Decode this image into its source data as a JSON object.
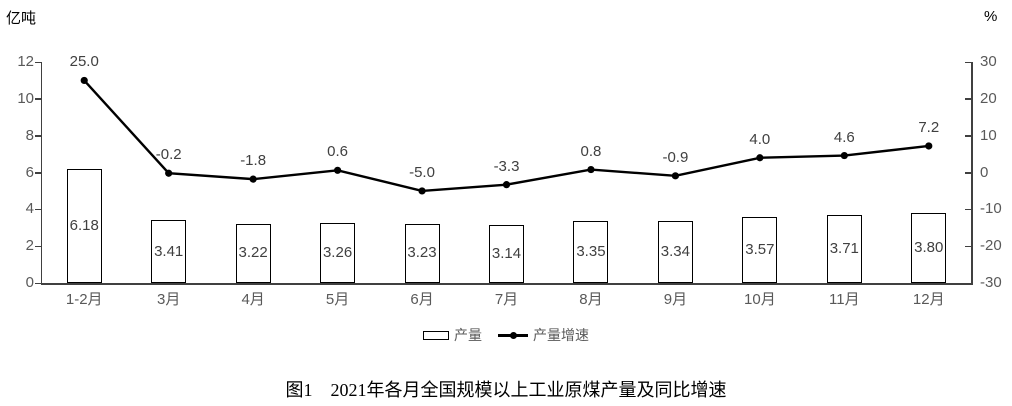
{
  "chart_data": {
    "type": "combo-bar-line",
    "caption": "图1　2021年各月全国规模以上工业原煤产量及同比增速",
    "categories": [
      "1-2月",
      "3月",
      "4月",
      "5月",
      "6月",
      "7月",
      "8月",
      "9月",
      "10月",
      "11月",
      "12月"
    ],
    "series": [
      {
        "name": "产量",
        "type": "bar",
        "axis": "left",
        "values": [
          6.18,
          3.41,
          3.22,
          3.26,
          3.23,
          3.14,
          3.35,
          3.34,
          3.57,
          3.71,
          3.8
        ],
        "value_labels": [
          "6.18",
          "3.41",
          "3.22",
          "3.26",
          "3.23",
          "3.14",
          "3.35",
          "3.34",
          "3.57",
          "3.71",
          "3.80"
        ]
      },
      {
        "name": "产量增速",
        "type": "line",
        "axis": "right",
        "values": [
          25.0,
          -0.2,
          -1.8,
          0.6,
          -5.0,
          -3.3,
          0.8,
          -0.9,
          4.0,
          4.6,
          7.2
        ],
        "value_labels": [
          "25.0",
          "-0.2",
          "-1.8",
          "0.6",
          "-5.0",
          "-3.3",
          "0.8",
          "-0.9",
          "4.0",
          "4.6",
          "7.2"
        ]
      }
    ],
    "left_axis": {
      "unit": "亿吨",
      "min": 0,
      "max": 12,
      "ticks": [
        12,
        10,
        8,
        6,
        4,
        2,
        0
      ]
    },
    "right_axis": {
      "unit": "%",
      "min": -30,
      "max": 30,
      "ticks": [
        30,
        20,
        10,
        0,
        -10,
        -20,
        -30
      ]
    },
    "grid": false,
    "legend_position": "bottom-center"
  },
  "colors": {
    "bar_fill": "#ffffff",
    "bar_border": "#000000",
    "line": "#000000",
    "axis": "#404040",
    "tick_label": "#595959",
    "data_label": "#404040",
    "caption": "#000000"
  }
}
